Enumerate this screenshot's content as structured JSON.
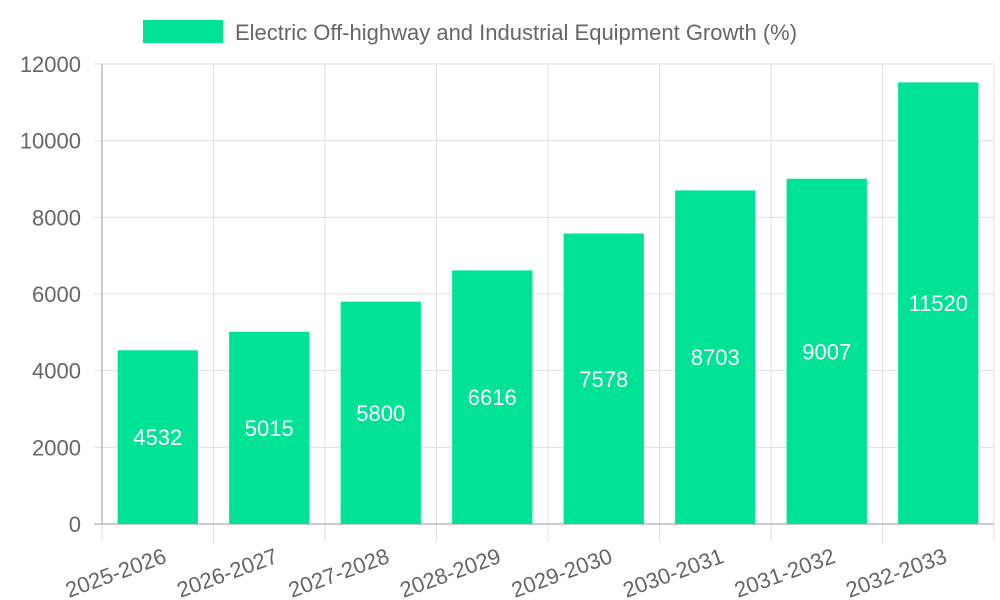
{
  "colors": {
    "bar": "#00e396",
    "grid": "#e0e0e0",
    "axis": "#bbbbbb",
    "text": "#666666",
    "data_label": "#ffffff"
  },
  "chart_data": {
    "type": "bar",
    "title": "",
    "categories": [
      "2025-2026",
      "2026-2027",
      "2027-2028",
      "2028-2029",
      "2029-2030",
      "2030-2031",
      "2031-2032",
      "2032-2033"
    ],
    "series": [
      {
        "name": "Electric Off-highway and Industrial Equipment Growth (%)",
        "values": [
          4532,
          5015,
          5800,
          6616,
          7578,
          8703,
          9007,
          11520
        ]
      }
    ],
    "ylim": [
      0,
      12000
    ],
    "yticks": [
      0,
      2000,
      4000,
      6000,
      8000,
      10000,
      12000
    ],
    "xlabel": "",
    "ylabel": "",
    "grid": true,
    "legend_position": "top-center"
  }
}
